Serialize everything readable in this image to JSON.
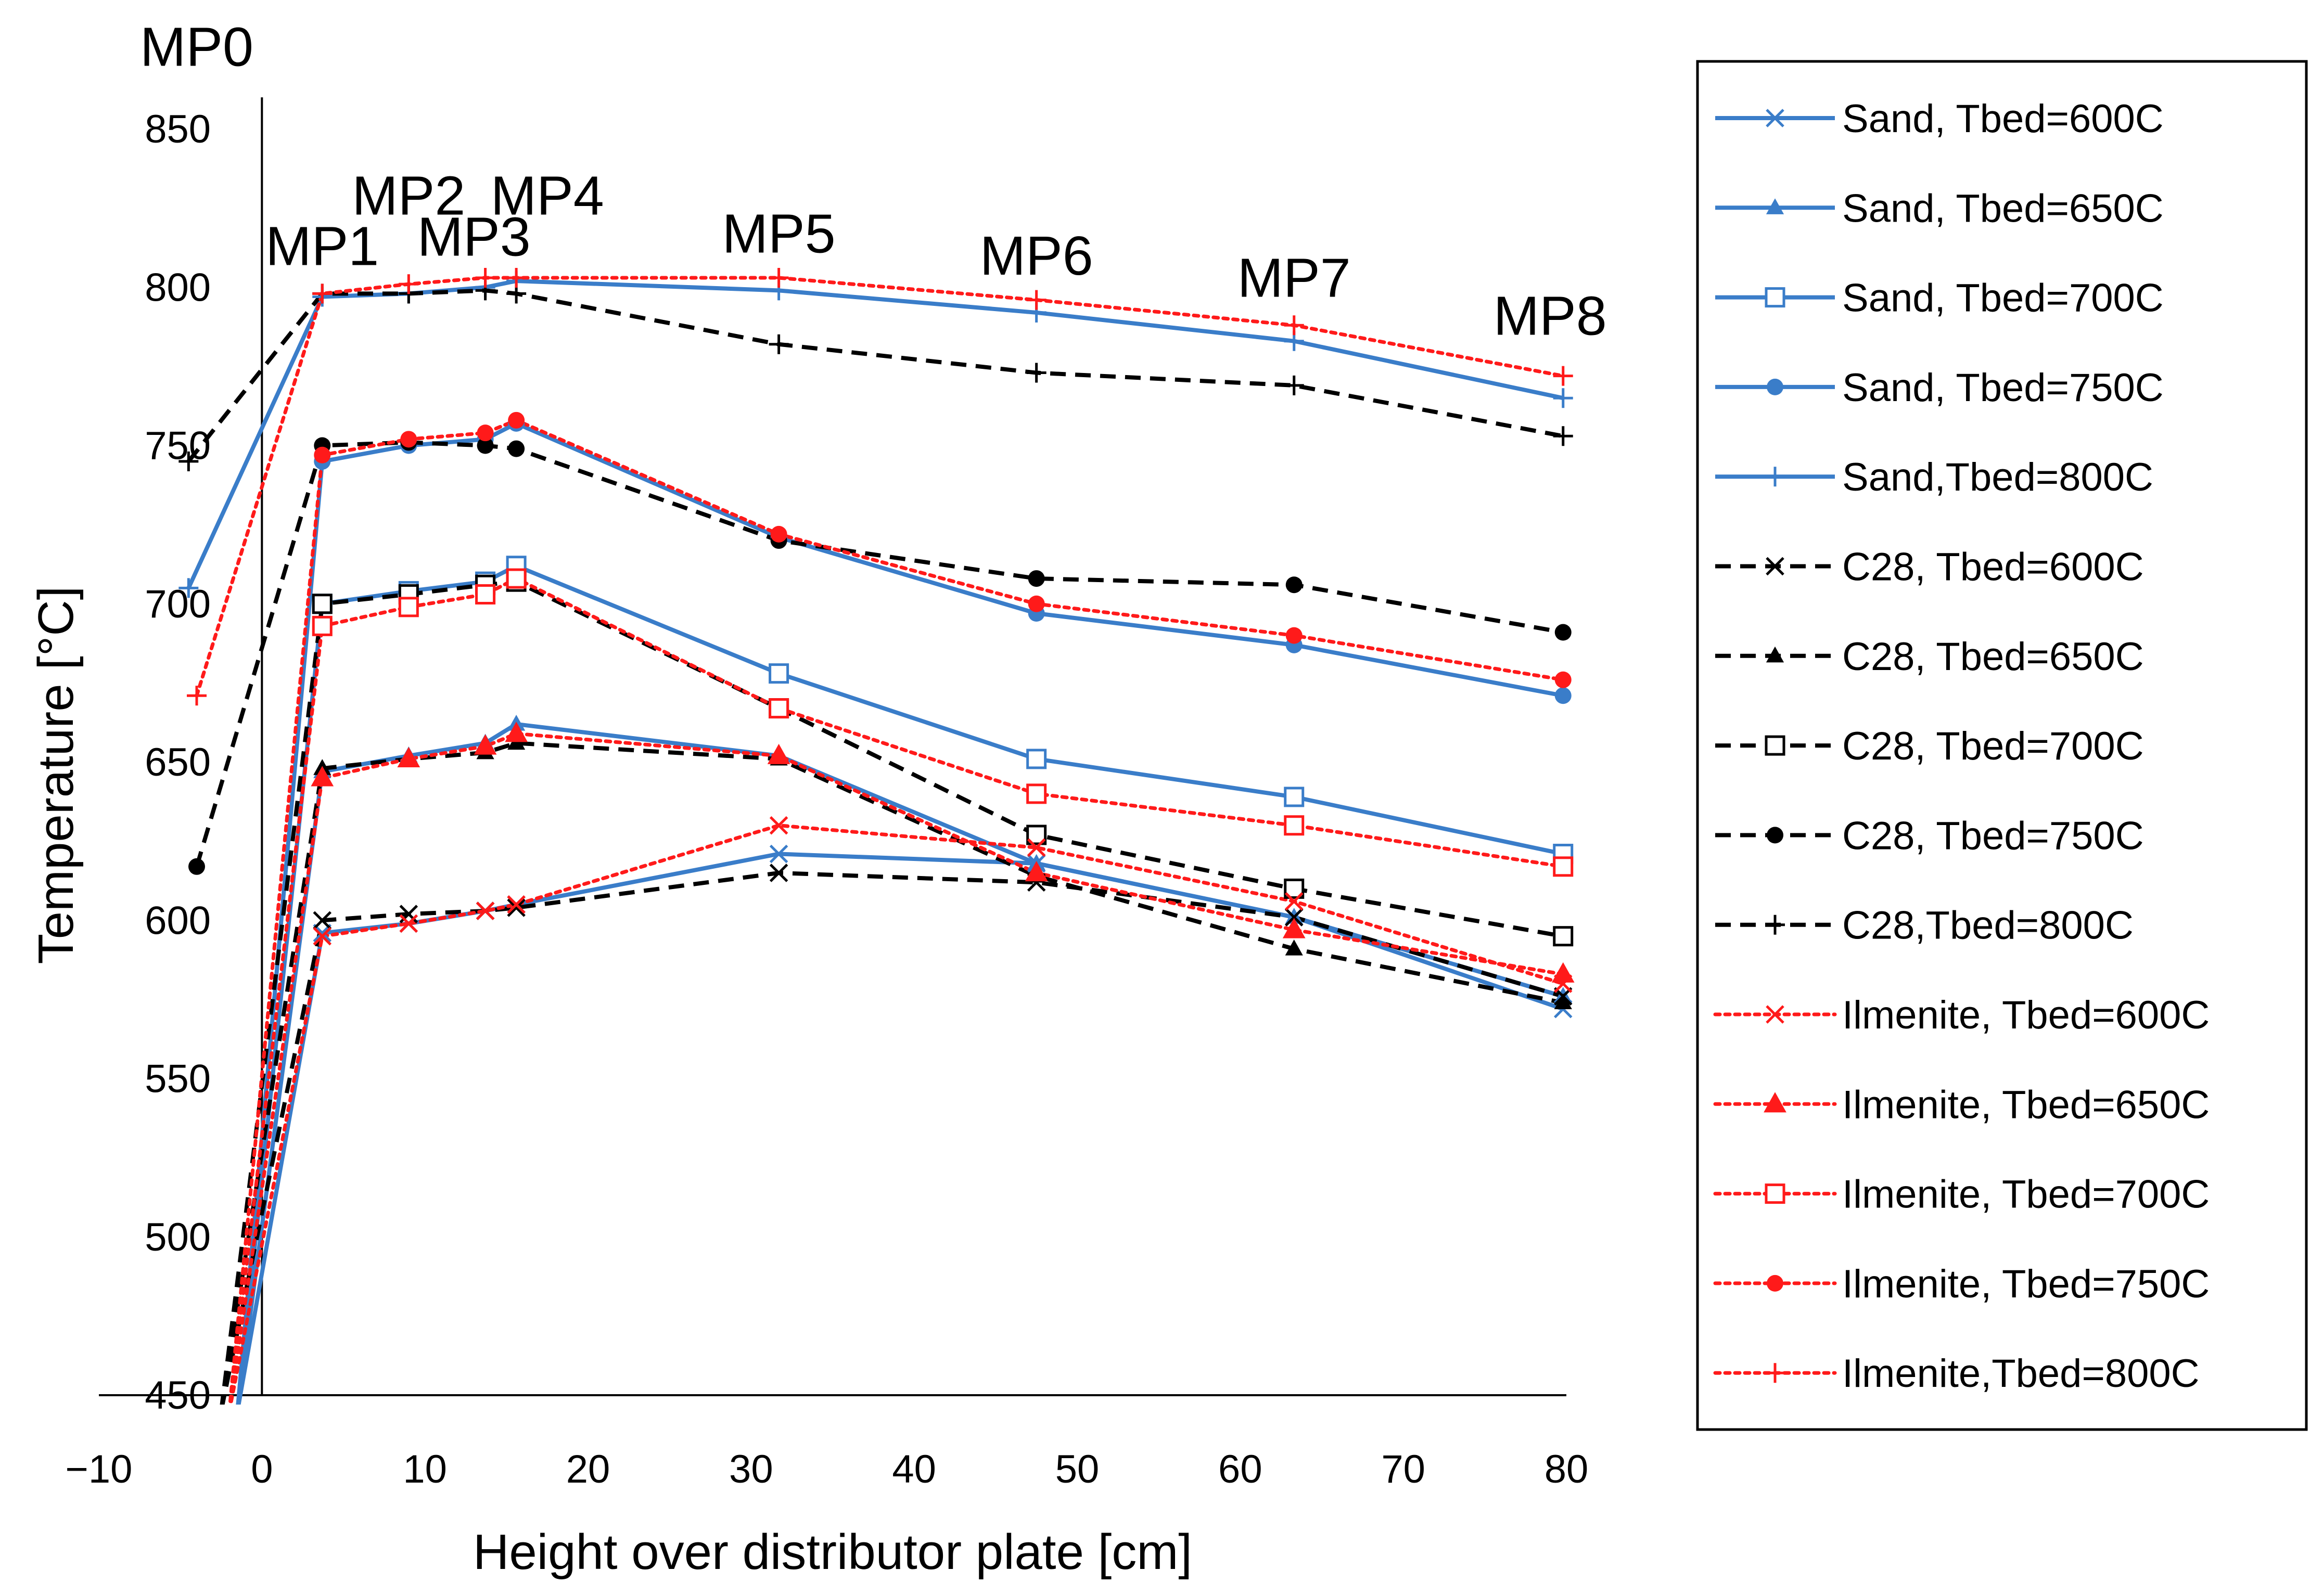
{
  "chart_data": {
    "type": "line",
    "title": "",
    "xlabel": "Height over distributor plate [cm]",
    "ylabel": "Temperature [°C]",
    "xlim": [
      -10,
      80
    ],
    "ylim": [
      450,
      850
    ],
    "xticks": [
      -10,
      0,
      10,
      20,
      30,
      40,
      50,
      60,
      70,
      80
    ],
    "xtick_labels": [
      "−10",
      "0",
      "10",
      "20",
      "30",
      "40",
      "50",
      "60",
      "70",
      "80"
    ],
    "yticks": [
      450,
      500,
      550,
      600,
      650,
      700,
      750,
      800,
      850
    ],
    "grid": false,
    "legend_position": "right",
    "annotations": [
      {
        "text": "MP0",
        "x": -4,
        "y": 870
      },
      {
        "text": "MP1",
        "x": 3.7,
        "y": 807
      },
      {
        "text": "MP2",
        "x": 9,
        "y": 823
      },
      {
        "text": "MP3",
        "x": 13,
        "y": 810
      },
      {
        "text": "MP4",
        "x": 17.5,
        "y": 823
      },
      {
        "text": "MP5",
        "x": 31.7,
        "y": 811
      },
      {
        "text": "MP6",
        "x": 47.5,
        "y": 804
      },
      {
        "text": "MP7",
        "x": 63.3,
        "y": 797
      },
      {
        "text": "MP8",
        "x": 79,
        "y": 785
      }
    ],
    "series": [
      {
        "name": "Sand, Tbed=600C",
        "material": "Sand",
        "color": "#3a7dc9",
        "dash": "solid",
        "marker": "x",
        "x": [
          -1.5,
          3.7,
          9,
          13.7,
          15.6,
          31.7,
          47.5,
          63.3,
          79.8
        ],
        "y": [
          445,
          596,
          599,
          603,
          605,
          621,
          618,
          601,
          572
        ]
      },
      {
        "name": "Sand, Tbed=650C",
        "material": "Sand",
        "color": "#3a7dc9",
        "dash": "solid",
        "marker": "triangle",
        "x": [
          -1.5,
          3.7,
          9,
          13.7,
          15.6,
          31.7,
          47.5,
          63.3,
          79.8
        ],
        "y": [
          445,
          647,
          652,
          656,
          662,
          652,
          618,
          601,
          576
        ]
      },
      {
        "name": "Sand, Tbed=700C",
        "material": "Sand",
        "color": "#3a7dc9",
        "dash": "solid",
        "marker": "square-open",
        "x": [
          -1.5,
          3.7,
          9,
          13.7,
          15.6,
          31.7,
          47.5,
          63.3,
          79.8
        ],
        "y": [
          445,
          700,
          704,
          707,
          712,
          678,
          651,
          639,
          621
        ]
      },
      {
        "name": "Sand, Tbed=750C",
        "material": "Sand",
        "color": "#3a7dc9",
        "dash": "solid",
        "marker": "circle",
        "x": [
          -1.5,
          3.7,
          9,
          13.7,
          15.6,
          31.7,
          47.5,
          63.3,
          79.8
        ],
        "y": [
          445,
          745,
          750,
          752,
          757,
          721,
          697,
          687,
          671
        ]
      },
      {
        "name": "Sand,Tbed=800C",
        "material": "Sand",
        "color": "#3a7dc9",
        "dash": "solid",
        "marker": "plus",
        "x": [
          -4.5,
          3.7,
          9,
          13.7,
          15.6,
          31.7,
          47.5,
          63.3,
          79.8
        ],
        "y": [
          705,
          797,
          798,
          800,
          802,
          799,
          792,
          783,
          765
        ]
      },
      {
        "name": "C28, Tbed=600C",
        "material": "C28",
        "color": "#000000",
        "dash": "dashed",
        "marker": "x",
        "x": [
          -2.5,
          3.7,
          9,
          13.7,
          15.6,
          31.7,
          47.5,
          63.3,
          79.8
        ],
        "y": [
          445,
          600,
          602,
          603,
          604,
          615,
          612,
          601,
          576
        ]
      },
      {
        "name": "C28, Tbed=650C",
        "material": "C28",
        "color": "#000000",
        "dash": "dashed",
        "marker": "triangle",
        "x": [
          -2.5,
          3.7,
          9,
          13.7,
          15.6,
          31.7,
          47.5,
          63.3,
          79.8
        ],
        "y": [
          445,
          648,
          651,
          653,
          656,
          651,
          614,
          591,
          574
        ]
      },
      {
        "name": "C28, Tbed=700C",
        "material": "C28",
        "color": "#000000",
        "dash": "dashed",
        "marker": "square-open",
        "x": [
          -2.5,
          3.7,
          9,
          13.7,
          15.6,
          31.7,
          47.5,
          63.3,
          79.8
        ],
        "y": [
          445,
          700,
          703,
          706,
          707,
          667,
          627,
          610,
          595
        ]
      },
      {
        "name": "C28, Tbed=750C",
        "material": "C28",
        "color": "#000000",
        "dash": "dashed",
        "marker": "circle",
        "x": [
          -4,
          3.7,
          9,
          13.7,
          15.6,
          31.7,
          47.5,
          63.3,
          79.8
        ],
        "y": [
          617,
          750,
          751,
          750,
          749,
          720,
          708,
          706,
          691
        ]
      },
      {
        "name": "C28,Tbed=800C",
        "material": "C28",
        "color": "#000000",
        "dash": "dashed",
        "marker": "plus",
        "x": [
          -4.5,
          3.7,
          9,
          13.7,
          15.6,
          31.7,
          47.5,
          63.3,
          79.8
        ],
        "y": [
          745,
          798,
          798,
          799,
          798,
          782,
          773,
          769,
          753
        ]
      },
      {
        "name": "Ilmenite, Tbed=600C",
        "material": "Ilmenite",
        "color": "#ff1a1a",
        "dash": "dotted",
        "marker": "x",
        "x": [
          -2,
          3.7,
          9,
          13.7,
          15.6,
          31.7,
          47.5,
          63.3,
          79.8
        ],
        "y": [
          445,
          595,
          599,
          603,
          605,
          630,
          623,
          606,
          580
        ]
      },
      {
        "name": "Ilmenite, Tbed=650C",
        "material": "Ilmenite",
        "color": "#ff1a1a",
        "dash": "dotted",
        "marker": "triangle-filled",
        "x": [
          -2,
          3.7,
          9,
          13.7,
          15.6,
          31.7,
          47.5,
          63.3,
          79.8
        ],
        "y": [
          445,
          645,
          651,
          655,
          659,
          652,
          615,
          597,
          583
        ]
      },
      {
        "name": "Ilmenite, Tbed=700C",
        "material": "Ilmenite",
        "color": "#ff1a1a",
        "dash": "dotted",
        "marker": "square-open",
        "x": [
          -2,
          3.7,
          9,
          13.7,
          15.6,
          31.7,
          47.5,
          63.3,
          79.8
        ],
        "y": [
          445,
          693,
          699,
          703,
          708,
          667,
          640,
          630,
          617
        ]
      },
      {
        "name": "Ilmenite, Tbed=750C",
        "material": "Ilmenite",
        "color": "#ff1a1a",
        "dash": "dotted",
        "marker": "circle",
        "x": [
          -2,
          3.7,
          9,
          13.7,
          15.6,
          31.7,
          47.5,
          63.3,
          79.8
        ],
        "y": [
          445,
          747,
          752,
          754,
          758,
          722,
          700,
          690,
          676
        ]
      },
      {
        "name": "Ilmenite,Tbed=800C",
        "material": "Ilmenite",
        "color": "#ff1a1a",
        "dash": "dotted",
        "marker": "plus",
        "x": [
          -4,
          3.7,
          9,
          13.7,
          15.6,
          31.7,
          47.5,
          63.3,
          79.8
        ],
        "y": [
          671,
          798,
          801,
          803,
          803,
          803,
          796,
          788,
          772
        ]
      }
    ]
  }
}
